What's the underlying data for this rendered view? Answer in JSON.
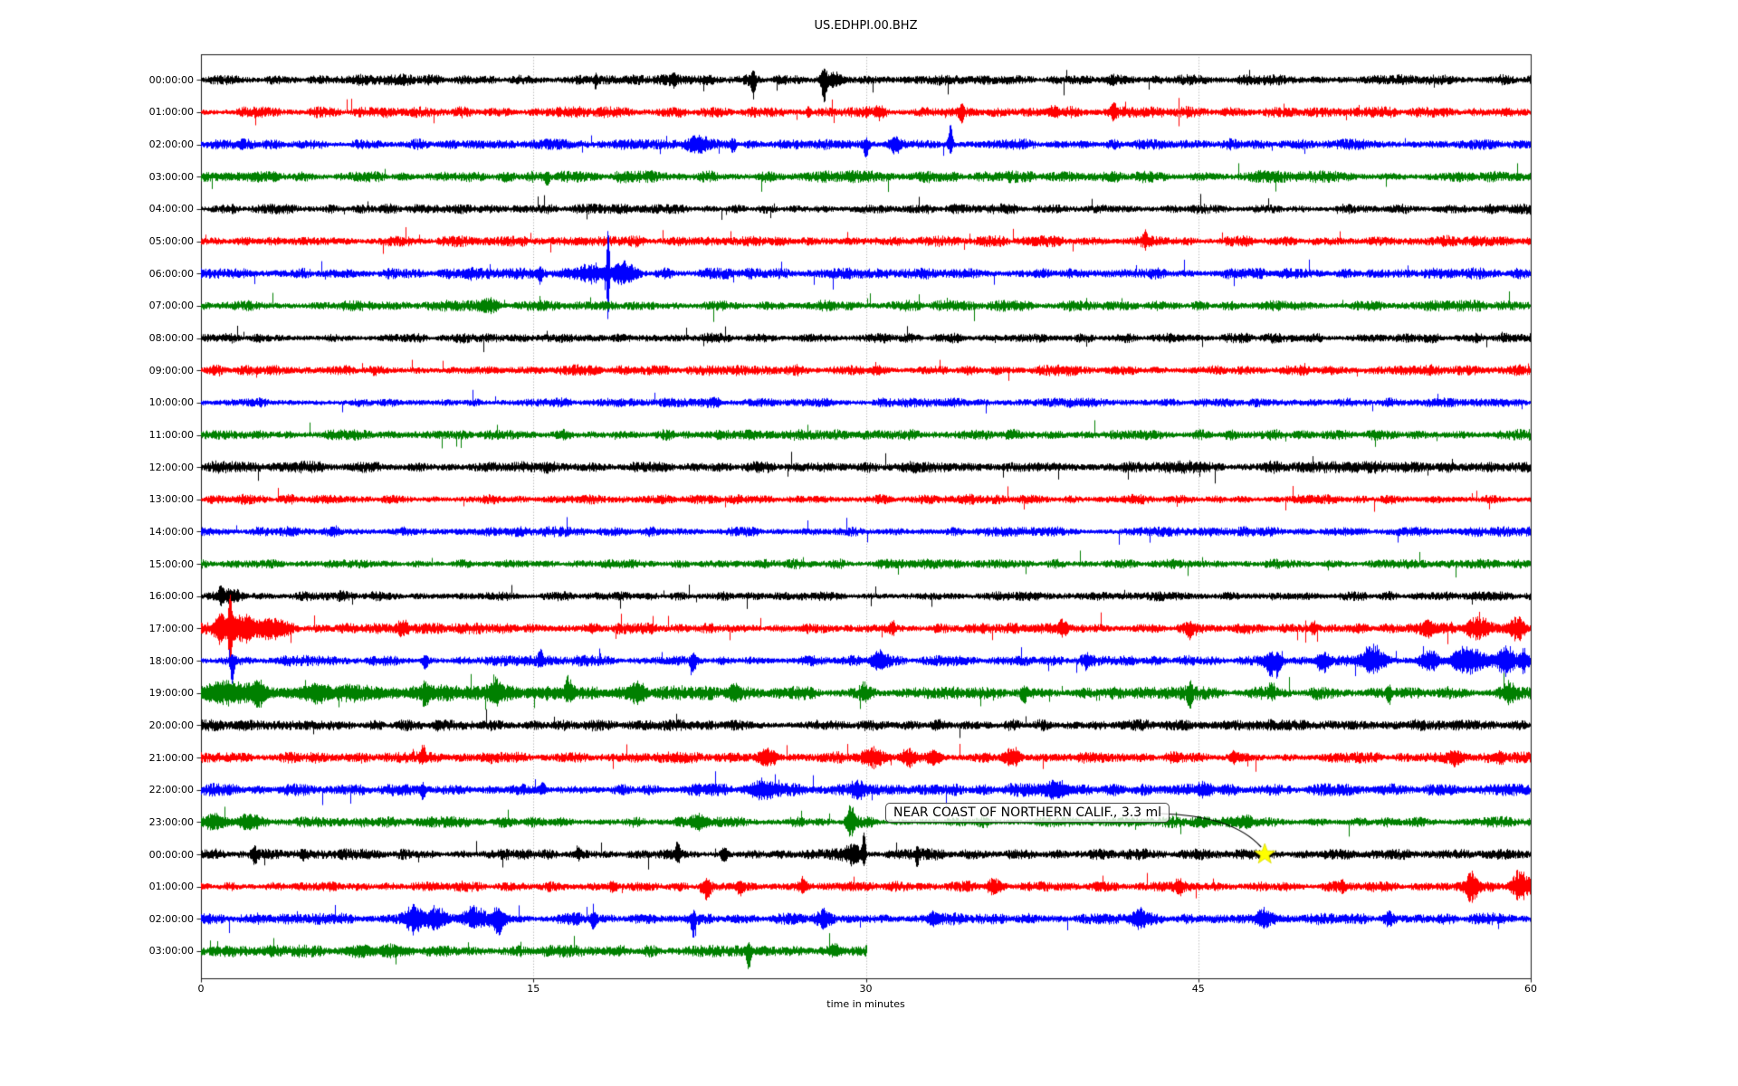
{
  "chart_data": {
    "type": "line",
    "subtype": "helicorder-dayplot",
    "title": "US.EDHPI.00.BHZ",
    "xlabel": "time in minutes",
    "xlim": [
      0,
      60
    ],
    "grid_minutes": [
      15,
      30,
      45
    ],
    "grid_color": "#9a9a9a",
    "background": "#ffffff",
    "colors_cycle": [
      "#000000",
      "#ff0000",
      "#0000ff",
      "#008000"
    ],
    "x_ticks": [
      {
        "label": "0",
        "minute": 0
      },
      {
        "label": "15",
        "minute": 15
      },
      {
        "label": "30",
        "minute": 30
      },
      {
        "label": "45",
        "minute": 45
      },
      {
        "label": "60",
        "minute": 60
      }
    ],
    "annotation": {
      "text": "NEAR COAST OF NORTHERN CALIF., 3.3 ml",
      "target_row_index": 24,
      "target_minute": 48,
      "marker": "star",
      "marker_color": "#ffff00",
      "box_fill": "rgba(255,255,255,0.78)",
      "box_border": "#4a4a4a"
    },
    "rows": [
      {
        "label": "00:00:00",
        "color": "#000000",
        "amp": 3.8,
        "events": [
          {
            "m": 17.8,
            "w": 0.1,
            "u": 4,
            "d": 7
          },
          {
            "m": 21.3,
            "w": 0.2,
            "u": 5,
            "d": 5
          },
          {
            "m": 24.9,
            "w": 0.1,
            "u": 5,
            "d": 16
          },
          {
            "m": 28.1,
            "w": 0.12,
            "u": 8,
            "d": 20
          },
          {
            "m": 28.6,
            "w": 0.35,
            "u": 7,
            "d": 7
          }
        ]
      },
      {
        "label": "01:00:00",
        "color": "#ff0000",
        "amp": 3.8,
        "events": [
          {
            "m": 27.4,
            "w": 0.1,
            "u": 5,
            "d": 5
          },
          {
            "m": 30.6,
            "w": 0.15,
            "u": 5,
            "d": 6
          },
          {
            "m": 34.3,
            "w": 0.12,
            "u": 6,
            "d": 8
          },
          {
            "m": 38.5,
            "w": 0.25,
            "u": 7,
            "d": 6
          },
          {
            "m": 41.2,
            "w": 0.12,
            "u": 8,
            "d": 6
          }
        ]
      },
      {
        "label": "02:00:00",
        "color": "#0000ff",
        "amp": 3.8,
        "events": [
          {
            "m": 22.4,
            "w": 0.4,
            "u": 6,
            "d": 6
          },
          {
            "m": 24.0,
            "w": 0.15,
            "u": 5,
            "d": 9
          },
          {
            "m": 30.0,
            "w": 0.12,
            "u": 5,
            "d": 14
          },
          {
            "m": 31.3,
            "w": 0.3,
            "u": 6,
            "d": 8
          },
          {
            "m": 33.8,
            "w": 0.1,
            "u": 22,
            "d": 8
          }
        ]
      },
      {
        "label": "03:00:00",
        "color": "#008000",
        "amp": 4.2,
        "events": [
          {
            "m": 2.0,
            "w": 1.0,
            "u": 2,
            "d": 2
          },
          {
            "m": 15.6,
            "w": 0.12,
            "u": 4,
            "d": 11
          }
        ]
      },
      {
        "label": "04:00:00",
        "color": "#000000",
        "amp": 3.4,
        "events": []
      },
      {
        "label": "05:00:00",
        "color": "#ff0000",
        "amp": 3.8,
        "events": [
          {
            "m": 42.6,
            "w": 0.1,
            "u": 9,
            "d": 4
          }
        ]
      },
      {
        "label": "06:00:00",
        "color": "#0000ff",
        "amp": 3.8,
        "events": [
          {
            "m": 12.1,
            "w": 0.3,
            "u": 4,
            "d": 4
          },
          {
            "m": 15.3,
            "w": 0.1,
            "u": 4,
            "d": 9
          },
          {
            "m": 17.6,
            "w": 0.9,
            "u": 9,
            "d": 9
          },
          {
            "m": 18.35,
            "w": 0.06,
            "u": 55,
            "d": 58
          },
          {
            "m": 19.1,
            "w": 0.45,
            "u": 9,
            "d": 9
          }
        ]
      },
      {
        "label": "07:00:00",
        "color": "#008000",
        "amp": 3.8,
        "events": [
          {
            "m": 13.0,
            "w": 0.4,
            "u": 5,
            "d": 5
          }
        ]
      },
      {
        "label": "08:00:00",
        "color": "#000000",
        "amp": 3.4,
        "events": []
      },
      {
        "label": "09:00:00",
        "color": "#ff0000",
        "amp": 3.8,
        "events": [
          {
            "m": 30.5,
            "w": 0.3,
            "u": 3,
            "d": 3
          }
        ]
      },
      {
        "label": "10:00:00",
        "color": "#0000ff",
        "amp": 3.2,
        "events": [
          {
            "m": 23.2,
            "w": 0.2,
            "u": 4,
            "d": 4
          }
        ]
      },
      {
        "label": "11:00:00",
        "color": "#008000",
        "amp": 3.8,
        "events": []
      },
      {
        "label": "12:00:00",
        "color": "#000000",
        "amp": 4.2,
        "events": []
      },
      {
        "label": "13:00:00",
        "color": "#ff0000",
        "amp": 3.4,
        "events": []
      },
      {
        "label": "14:00:00",
        "color": "#0000ff",
        "amp": 3.4,
        "events": [
          {
            "m": 6.0,
            "w": 0.2,
            "u": 3,
            "d": 3
          }
        ]
      },
      {
        "label": "15:00:00",
        "color": "#008000",
        "amp": 3.4,
        "events": []
      },
      {
        "label": "16:00:00",
        "color": "#000000",
        "amp": 3.2,
        "events": [
          {
            "m": 0.9,
            "w": 0.12,
            "u": 9,
            "d": 6
          },
          {
            "m": 1.4,
            "w": 0.5,
            "u": 7,
            "d": 7
          },
          {
            "m": 6.3,
            "w": 0.15,
            "u": 4,
            "d": 4
          }
        ]
      },
      {
        "label": "17:00:00",
        "color": "#ff0000",
        "amp": 4.0,
        "events": [
          {
            "m": 0.85,
            "w": 0.25,
            "u": 12,
            "d": 12
          },
          {
            "m": 1.3,
            "w": 0.07,
            "u": 38,
            "d": 42
          },
          {
            "m": 1.9,
            "w": 0.7,
            "u": 15,
            "d": 15
          },
          {
            "m": 3.2,
            "w": 0.6,
            "u": 9,
            "d": 9
          },
          {
            "m": 9.1,
            "w": 0.2,
            "u": 7,
            "d": 6
          },
          {
            "m": 31.2,
            "w": 0.15,
            "u": 7,
            "d": 6
          },
          {
            "m": 38.9,
            "w": 0.2,
            "u": 10,
            "d": 7
          },
          {
            "m": 44.6,
            "w": 0.15,
            "u": 6,
            "d": 9
          },
          {
            "m": 50.2,
            "w": 0.15,
            "u": 6,
            "d": 6
          },
          {
            "m": 55.4,
            "w": 0.25,
            "u": 9,
            "d": 9
          },
          {
            "m": 57.6,
            "w": 0.5,
            "u": 13,
            "d": 12
          },
          {
            "m": 59.4,
            "w": 0.35,
            "u": 12,
            "d": 13
          }
        ]
      },
      {
        "label": "18:00:00",
        "color": "#0000ff",
        "amp": 3.6,
        "events": [
          {
            "m": 1.4,
            "w": 0.1,
            "u": 5,
            "d": 24
          },
          {
            "m": 10.1,
            "w": 0.12,
            "u": 5,
            "d": 9
          },
          {
            "m": 15.3,
            "w": 0.12,
            "u": 8,
            "d": 5
          },
          {
            "m": 22.2,
            "w": 0.12,
            "u": 5,
            "d": 11
          },
          {
            "m": 30.6,
            "w": 0.35,
            "u": 8,
            "d": 8
          },
          {
            "m": 40.0,
            "w": 0.2,
            "u": 6,
            "d": 6
          },
          {
            "m": 48.4,
            "w": 0.35,
            "u": 11,
            "d": 22
          },
          {
            "m": 50.6,
            "w": 0.3,
            "u": 9,
            "d": 17
          },
          {
            "m": 52.9,
            "w": 0.5,
            "u": 17,
            "d": 13
          },
          {
            "m": 55.4,
            "w": 0.4,
            "u": 11,
            "d": 11
          },
          {
            "m": 57.1,
            "w": 0.7,
            "u": 13,
            "d": 13
          },
          {
            "m": 58.9,
            "w": 0.45,
            "u": 15,
            "d": 15
          },
          {
            "m": 59.7,
            "w": 0.2,
            "u": 13,
            "d": 13
          }
        ]
      },
      {
        "label": "19:00:00",
        "color": "#008000",
        "amp": 4.5,
        "events": [
          {
            "m": 10,
            "w": 9,
            "u": 3.5,
            "d": 3.5
          },
          {
            "m": 1.3,
            "w": 1.2,
            "u": 9,
            "d": 9
          },
          {
            "m": 2.6,
            "w": 0.25,
            "u": 15,
            "d": 17
          },
          {
            "m": 5.2,
            "w": 0.8,
            "u": 6,
            "d": 6
          },
          {
            "m": 10.1,
            "w": 0.15,
            "u": 7,
            "d": 13
          },
          {
            "m": 13.3,
            "w": 0.2,
            "u": 13,
            "d": 9
          },
          {
            "m": 16.6,
            "w": 0.2,
            "u": 16,
            "d": 7
          },
          {
            "m": 19.7,
            "w": 0.35,
            "u": 12,
            "d": 12
          },
          {
            "m": 24.1,
            "w": 0.25,
            "u": 9,
            "d": 7
          },
          {
            "m": 29.9,
            "w": 0.2,
            "u": 8,
            "d": 6
          },
          {
            "m": 37.1,
            "w": 0.12,
            "u": 4,
            "d": 10
          },
          {
            "m": 44.6,
            "w": 0.12,
            "u": 5,
            "d": 12
          },
          {
            "m": 48.3,
            "w": 0.15,
            "u": 11,
            "d": 5
          },
          {
            "m": 53.6,
            "w": 0.12,
            "u": 5,
            "d": 9
          },
          {
            "m": 59.0,
            "w": 0.3,
            "u": 7,
            "d": 7
          }
        ]
      },
      {
        "label": "20:00:00",
        "color": "#000000",
        "amp": 3.8,
        "events": [
          {
            "m": 10.6,
            "w": 0.25,
            "u": 4,
            "d": 4
          },
          {
            "m": 33.2,
            "w": 0.2,
            "u": 4,
            "d": 4
          }
        ]
      },
      {
        "label": "21:00:00",
        "color": "#ff0000",
        "amp": 4.0,
        "events": [
          {
            "m": 10.0,
            "w": 0.1,
            "u": 12,
            "d": 4
          },
          {
            "m": 25.6,
            "w": 0.4,
            "u": 8,
            "d": 8
          },
          {
            "m": 30.3,
            "w": 0.5,
            "u": 9,
            "d": 9
          },
          {
            "m": 31.9,
            "w": 0.35,
            "u": 8,
            "d": 8
          },
          {
            "m": 33.1,
            "w": 0.3,
            "u": 8,
            "d": 8
          },
          {
            "m": 36.6,
            "w": 0.4,
            "u": 9,
            "d": 8
          },
          {
            "m": 46.6,
            "w": 0.2,
            "u": 6,
            "d": 6
          },
          {
            "m": 56.6,
            "w": 0.3,
            "u": 7,
            "d": 7
          },
          {
            "m": 58.6,
            "w": 0.2,
            "u": 6,
            "d": 6
          }
        ]
      },
      {
        "label": "22:00:00",
        "color": "#0000ff",
        "amp": 4.2,
        "events": [
          {
            "m": 10.0,
            "w": 0.1,
            "u": 4,
            "d": 9
          },
          {
            "m": 15.4,
            "w": 0.12,
            "u": 8,
            "d": 4
          },
          {
            "m": 25.3,
            "w": 0.5,
            "u": 9,
            "d": 9
          },
          {
            "m": 29.6,
            "w": 0.3,
            "u": 7,
            "d": 7
          },
          {
            "m": 38.6,
            "w": 0.6,
            "u": 8,
            "d": 8
          },
          {
            "m": 45.3,
            "w": 0.3,
            "u": 7,
            "d": 7
          }
        ]
      },
      {
        "label": "23:00:00",
        "color": "#008000",
        "amp": 3.8,
        "events": [
          {
            "m": 0.6,
            "w": 0.7,
            "u": 7,
            "d": 7
          },
          {
            "m": 2.1,
            "w": 0.4,
            "u": 8,
            "d": 8
          },
          {
            "m": 22.5,
            "w": 0.4,
            "u": 8,
            "d": 8
          },
          {
            "m": 29.3,
            "w": 0.2,
            "u": 16,
            "d": 13
          },
          {
            "m": 47.1,
            "w": 0.3,
            "u": 5,
            "d": 5
          }
        ]
      },
      {
        "label": "00:00:00",
        "color": "#000000",
        "amp": 3.8,
        "events": [
          {
            "m": 2.4,
            "w": 0.12,
            "u": 5,
            "d": 9
          },
          {
            "m": 4.6,
            "w": 0.15,
            "u": 4,
            "d": 6
          },
          {
            "m": 17.0,
            "w": 0.1,
            "u": 7,
            "d": 4
          },
          {
            "m": 21.5,
            "w": 0.12,
            "u": 12,
            "d": 6
          },
          {
            "m": 23.6,
            "w": 0.12,
            "u": 5,
            "d": 9
          },
          {
            "m": 29.4,
            "w": 0.35,
            "u": 10,
            "d": 10
          },
          {
            "m": 29.9,
            "w": 0.08,
            "u": 25,
            "d": 11
          },
          {
            "m": 32.3,
            "w": 0.08,
            "u": 4,
            "d": 10
          }
        ]
      },
      {
        "label": "01:00:00",
        "color": "#ff0000",
        "amp": 3.6,
        "events": [
          {
            "m": 18.6,
            "w": 0.2,
            "u": 5,
            "d": 5
          },
          {
            "m": 22.8,
            "w": 0.25,
            "u": 7,
            "d": 15
          },
          {
            "m": 24.3,
            "w": 0.2,
            "u": 6,
            "d": 11
          },
          {
            "m": 27.1,
            "w": 0.2,
            "u": 8,
            "d": 6
          },
          {
            "m": 35.7,
            "w": 0.25,
            "u": 7,
            "d": 7
          },
          {
            "m": 44.1,
            "w": 0.2,
            "u": 6,
            "d": 6
          },
          {
            "m": 51.5,
            "w": 0.15,
            "u": 5,
            "d": 5
          },
          {
            "m": 57.3,
            "w": 0.3,
            "u": 15,
            "d": 17
          },
          {
            "m": 59.5,
            "w": 0.4,
            "u": 17,
            "d": 13
          }
        ]
      },
      {
        "label": "02:00:00",
        "color": "#0000ff",
        "amp": 4.0,
        "events": [
          {
            "m": 9.6,
            "w": 0.35,
            "u": 13,
            "d": 15
          },
          {
            "m": 10.6,
            "w": 0.45,
            "u": 11,
            "d": 11
          },
          {
            "m": 12.3,
            "w": 0.5,
            "u": 13,
            "d": 9
          },
          {
            "m": 13.4,
            "w": 0.3,
            "u": 9,
            "d": 15
          },
          {
            "m": 17.7,
            "w": 0.12,
            "u": 5,
            "d": 11
          },
          {
            "m": 22.2,
            "w": 0.1,
            "u": 5,
            "d": 19
          },
          {
            "m": 28.1,
            "w": 0.35,
            "u": 7,
            "d": 7
          },
          {
            "m": 33.0,
            "w": 0.2,
            "u": 6,
            "d": 6
          },
          {
            "m": 42.3,
            "w": 0.4,
            "u": 8,
            "d": 8
          },
          {
            "m": 47.9,
            "w": 0.3,
            "u": 8,
            "d": 8
          },
          {
            "m": 53.6,
            "w": 0.2,
            "u": 6,
            "d": 6
          }
        ]
      },
      {
        "label": "03:00:00",
        "color": "#008000",
        "amp": 4.2,
        "end_minute": 30,
        "events": [
          {
            "m": 8.0,
            "w": 1.5,
            "u": 3,
            "d": 3
          },
          {
            "m": 24.7,
            "w": 0.12,
            "u": 6,
            "d": 17
          },
          {
            "m": 28.6,
            "w": 0.3,
            "u": 7,
            "d": 5
          }
        ]
      }
    ]
  }
}
